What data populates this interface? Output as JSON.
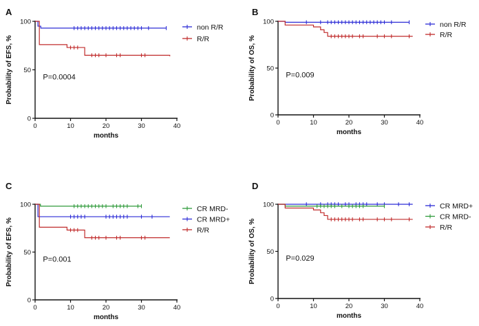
{
  "chart_data": [
    {
      "panel": "A",
      "type": "line",
      "subtype": "kaplan-meier",
      "ylabel": "Probability of EFS, %",
      "xlabel": "months",
      "xlim": [
        0,
        40
      ],
      "ylim": [
        0,
        100
      ],
      "xticks": [
        0,
        10,
        20,
        30,
        40
      ],
      "yticks": [
        0,
        50,
        100
      ],
      "pvalue": "P=0.0004",
      "legend_position": "top-right",
      "series": [
        {
          "name": "non R/R",
          "color": "#2b2bd6",
          "steps": [
            [
              0,
              100
            ],
            [
              0.8,
              95
            ],
            [
              1.6,
              93
            ],
            [
              37,
              93
            ]
          ],
          "censor": [
            11,
            12,
            13,
            14,
            15,
            16,
            17,
            18,
            19,
            20,
            21,
            22,
            23,
            24,
            25,
            26,
            27,
            28,
            29,
            30,
            32,
            37
          ]
        },
        {
          "name": "R/R",
          "color": "#c02b2b",
          "steps": [
            [
              0,
              100
            ],
            [
              1.2,
              76
            ],
            [
              9,
              73
            ],
            [
              14,
              65
            ],
            [
              38,
              64
            ]
          ],
          "censor": [
            10,
            11,
            12,
            16,
            17,
            18,
            20,
            23,
            24,
            30,
            31
          ]
        }
      ]
    },
    {
      "panel": "B",
      "type": "line",
      "subtype": "kaplan-meier",
      "ylabel": "Probability of OS, %",
      "xlabel": "months",
      "xlim": [
        0,
        40
      ],
      "ylim": [
        0,
        100
      ],
      "xticks": [
        0,
        10,
        20,
        30,
        40
      ],
      "yticks": [
        0,
        50,
        100
      ],
      "pvalue": "P=0.009",
      "legend_position": "top-right",
      "series": [
        {
          "name": "non R/R",
          "color": "#2b2bd6",
          "steps": [
            [
              0,
              100
            ],
            [
              2,
              99
            ],
            [
              37,
              99
            ]
          ],
          "censor": [
            8,
            12,
            14,
            15,
            16,
            17,
            18,
            19,
            20,
            21,
            22,
            23,
            24,
            25,
            26,
            27,
            28,
            29,
            30,
            32,
            37
          ]
        },
        {
          "name": "R/R",
          "color": "#c02b2b",
          "steps": [
            [
              0,
              100
            ],
            [
              2,
              96
            ],
            [
              10,
              94
            ],
            [
              12,
              91
            ],
            [
              13,
              88
            ],
            [
              14,
              84
            ],
            [
              38,
              84
            ]
          ],
          "censor": [
            15,
            16,
            17,
            18,
            19,
            20,
            21,
            23,
            24,
            28,
            30,
            32,
            37
          ]
        }
      ]
    },
    {
      "panel": "C",
      "type": "line",
      "subtype": "kaplan-meier",
      "ylabel": "Probability of EFS, %",
      "xlabel": "months",
      "xlim": [
        0,
        40
      ],
      "ylim": [
        0,
        100
      ],
      "xticks": [
        0,
        10,
        20,
        30,
        40
      ],
      "yticks": [
        0,
        50,
        100
      ],
      "pvalue": "P=0.001",
      "legend_position": "top-right",
      "series": [
        {
          "name": "CR MRD-",
          "color": "#2e9a3a",
          "steps": [
            [
              0,
              100
            ],
            [
              1.5,
              98
            ],
            [
              30,
              98
            ]
          ],
          "censor": [
            11,
            12,
            13,
            14,
            15,
            16,
            17,
            18,
            19,
            20,
            22,
            23,
            24,
            25,
            26,
            29,
            30
          ]
        },
        {
          "name": "CR MRD+",
          "color": "#2b2bd6",
          "steps": [
            [
              0,
              100
            ],
            [
              0.8,
              87
            ],
            [
              38,
              87
            ]
          ],
          "censor": [
            10,
            11,
            12,
            13,
            14,
            20,
            21,
            22,
            23,
            24,
            25,
            26,
            30,
            33
          ]
        },
        {
          "name": "R/R",
          "color": "#c02b2b",
          "steps": [
            [
              0,
              100
            ],
            [
              1.2,
              76
            ],
            [
              9,
              73
            ],
            [
              14,
              65
            ],
            [
              38,
              65
            ]
          ],
          "censor": [
            10,
            11,
            12,
            16,
            17,
            18,
            20,
            23,
            24,
            30,
            31
          ]
        }
      ]
    },
    {
      "panel": "D",
      "type": "line",
      "subtype": "kaplan-meier",
      "ylabel": "Probability of OS, %",
      "xlabel": "months",
      "xlim": [
        0,
        40
      ],
      "ylim": [
        0,
        100
      ],
      "xticks": [
        0,
        10,
        20,
        30,
        40
      ],
      "yticks": [
        0,
        50,
        100
      ],
      "pvalue": "P=0.029",
      "legend_position": "top-right",
      "series": [
        {
          "name": "CR MRD+",
          "color": "#2b2bd6",
          "steps": [
            [
              0,
              100
            ],
            [
              38,
              100
            ]
          ],
          "censor": [
            8,
            12,
            14,
            15,
            16,
            17,
            19,
            20,
            22,
            23,
            24,
            25,
            28,
            30,
            34,
            37
          ]
        },
        {
          "name": "CR MRD-",
          "color": "#2e9a3a",
          "steps": [
            [
              0,
              100
            ],
            [
              2,
              98
            ],
            [
              30,
              98
            ]
          ],
          "censor": [
            11,
            12,
            13,
            14,
            15,
            16,
            18,
            20,
            21,
            22,
            23,
            24,
            30
          ]
        },
        {
          "name": "R/R",
          "color": "#c02b2b",
          "steps": [
            [
              0,
              100
            ],
            [
              2,
              96
            ],
            [
              10,
              94
            ],
            [
              12,
              91
            ],
            [
              13,
              88
            ],
            [
              14,
              84
            ],
            [
              38,
              84
            ]
          ],
          "censor": [
            15,
            16,
            17,
            18,
            19,
            20,
            21,
            23,
            24,
            28,
            30,
            32,
            37
          ]
        }
      ]
    }
  ]
}
